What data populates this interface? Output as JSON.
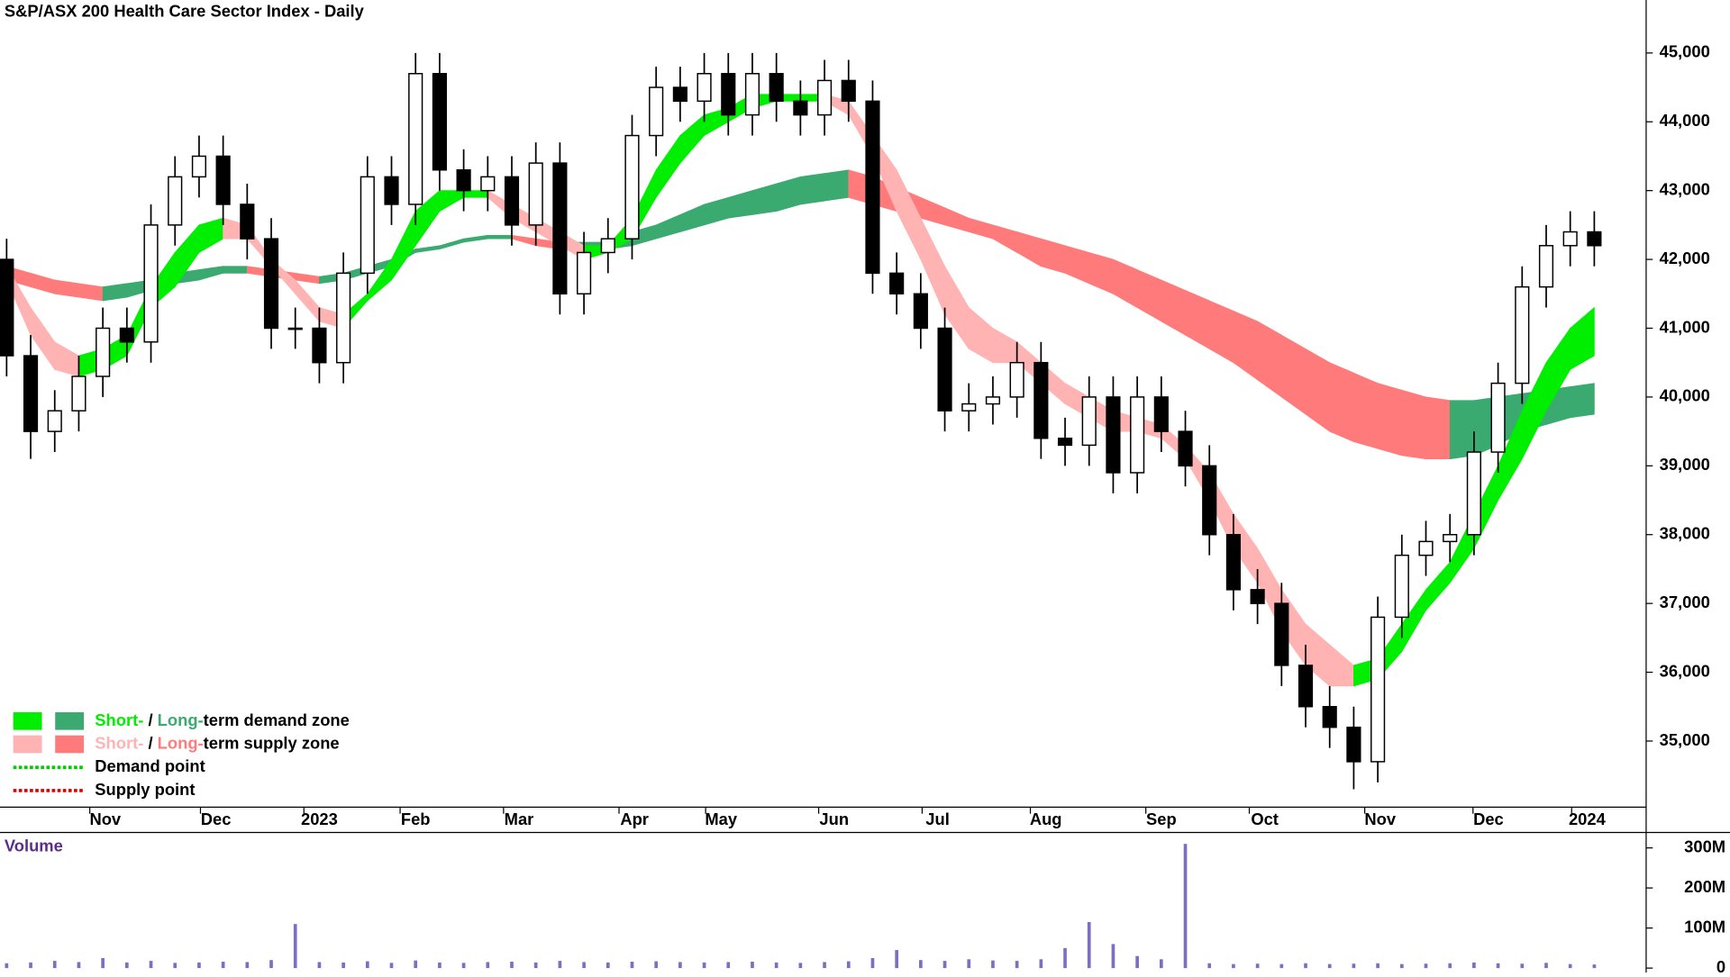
{
  "chart_data": {
    "type": "candlestick",
    "title": "S&P/ASX 200 Health Care Sector Index - Daily",
    "ylim": [
      34040,
      45770
    ],
    "yticks": [
      {
        "value": 35000,
        "label": "35,000"
      },
      {
        "value": 36000,
        "label": "36,000"
      },
      {
        "value": 37000,
        "label": "37,000"
      },
      {
        "value": 38000,
        "label": "38,000"
      },
      {
        "value": 39000,
        "label": "39,000"
      },
      {
        "value": 40000,
        "label": "40,000"
      },
      {
        "value": 41000,
        "label": "41,000"
      },
      {
        "value": 42000,
        "label": "42,000"
      },
      {
        "value": 43000,
        "label": "43,000"
      },
      {
        "value": 44000,
        "label": "44,000"
      },
      {
        "value": 45000,
        "label": "45,000"
      }
    ],
    "xlim": [
      0,
      66
    ],
    "xticks": [
      {
        "value": 4.1,
        "label": "Nov"
      },
      {
        "value": 8.7,
        "label": "Dec"
      },
      {
        "value": 13.0,
        "label": "2023"
      },
      {
        "value": 17.0,
        "label": "Feb"
      },
      {
        "value": 21.3,
        "label": "Mar"
      },
      {
        "value": 26.1,
        "label": "Apr"
      },
      {
        "value": 29.7,
        "label": "May"
      },
      {
        "value": 34.4,
        "label": "Jun"
      },
      {
        "value": 38.7,
        "label": "Jul"
      },
      {
        "value": 43.2,
        "label": "Aug"
      },
      {
        "value": 48.0,
        "label": "Sep"
      },
      {
        "value": 52.3,
        "label": "Oct"
      },
      {
        "value": 57.1,
        "label": "Nov"
      },
      {
        "value": 61.6,
        "label": "Dec"
      },
      {
        "value": 65.7,
        "label": "2024"
      }
    ],
    "open": [
      42000,
      40600,
      39500,
      39800,
      40300,
      41000,
      40800,
      42500,
      43200,
      43500,
      42800,
      42300,
      41000,
      41000,
      40500,
      41800,
      43200,
      42800,
      44700,
      43300,
      43000,
      43200,
      42500,
      43400,
      41500,
      42100,
      42300,
      43800,
      44500,
      44300,
      44700,
      44100,
      44700,
      44300,
      44100,
      44600,
      44300,
      41800,
      41500,
      41000,
      39800,
      39900,
      40000,
      40500,
      39400,
      39300,
      40000,
      38900,
      40000,
      39500,
      39000,
      38000,
      37200,
      37000,
      36100,
      35500,
      35200,
      34700,
      36800,
      37700,
      37900,
      38000,
      39200,
      40200,
      41600,
      42200,
      42400
    ],
    "high": [
      42300,
      40900,
      40100,
      40600,
      41300,
      41300,
      42800,
      43500,
      43800,
      43800,
      43100,
      42600,
      41300,
      41300,
      42100,
      43500,
      43500,
      45000,
      45000,
      43600,
      43500,
      43500,
      43700,
      43700,
      42400,
      42600,
      44100,
      44800,
      44800,
      45000,
      45000,
      45000,
      45000,
      44600,
      44900,
      44900,
      44600,
      42100,
      41800,
      41300,
      40200,
      40300,
      40800,
      40800,
      39700,
      40300,
      40300,
      40300,
      40300,
      39800,
      39300,
      38300,
      37500,
      37300,
      36400,
      35800,
      35500,
      37100,
      38000,
      38200,
      38300,
      39500,
      40500,
      41900,
      42500,
      42700,
      42700
    ],
    "low": [
      40300,
      39100,
      39200,
      39500,
      40000,
      40500,
      40500,
      42200,
      42900,
      42500,
      42000,
      40700,
      40700,
      40200,
      40200,
      41500,
      42500,
      42500,
      43000,
      42700,
      42700,
      42200,
      42200,
      41200,
      41200,
      41800,
      42000,
      43500,
      44000,
      44000,
      43800,
      43800,
      44000,
      43800,
      43800,
      44000,
      41500,
      41200,
      40700,
      39500,
      39500,
      39600,
      39700,
      39100,
      39000,
      39000,
      38600,
      38600,
      39200,
      38700,
      37700,
      36900,
      36700,
      35800,
      35200,
      34900,
      34300,
      34400,
      36500,
      37400,
      37600,
      37700,
      38900,
      39900,
      41300,
      41900,
      41900
    ],
    "close": [
      40600,
      39500,
      39800,
      40300,
      41000,
      40800,
      42500,
      43200,
      43500,
      42800,
      42300,
      41000,
      41000,
      40500,
      41800,
      43200,
      42800,
      44700,
      43300,
      43000,
      43200,
      42500,
      43400,
      41500,
      42100,
      42300,
      43800,
      44500,
      44300,
      44700,
      44100,
      44700,
      44300,
      44100,
      44600,
      44300,
      41800,
      41500,
      41000,
      39800,
      39900,
      40000,
      40500,
      39400,
      39300,
      40000,
      38900,
      40000,
      39500,
      39000,
      38000,
      37200,
      37000,
      36100,
      35500,
      35200,
      34700,
      36800,
      37700,
      37900,
      38000,
      39200,
      40200,
      41600,
      42200,
      42400,
      42200
    ],
    "short_zone": {
      "upper": [
        41900,
        41300,
        40800,
        40600,
        40700,
        40900,
        41600,
        42100,
        42500,
        42600,
        42500,
        42000,
        41700,
        41300,
        41200,
        41500,
        42000,
        42700,
        43000,
        43000,
        43000,
        42800,
        42600,
        42400,
        42200,
        42200,
        42600,
        43300,
        43800,
        44100,
        44200,
        44400,
        44400,
        44400,
        44400,
        44300,
        43800,
        43300,
        42600,
        41900,
        41300,
        41000,
        40800,
        40500,
        40200,
        40000,
        39800,
        39700,
        39600,
        39300,
        38900,
        38300,
        37800,
        37200,
        36700,
        36400,
        36100,
        36200,
        36700,
        37200,
        37600,
        38300,
        39000,
        39800,
        40500,
        41000,
        41300
      ],
      "lower": [
        41700,
        40900,
        40400,
        40300,
        40400,
        40600,
        41300,
        41600,
        42100,
        42300,
        42300,
        41900,
        41500,
        41100,
        41000,
        41400,
        41700,
        42200,
        42700,
        42900,
        42900,
        42600,
        42400,
        42200,
        42000,
        42100,
        42300,
        42900,
        43400,
        43800,
        44000,
        44200,
        44300,
        44300,
        44300,
        44100,
        43500,
        42700,
        42000,
        41200,
        40700,
        40500,
        40500,
        40200,
        39900,
        39700,
        39500,
        39500,
        39400,
        39100,
        38500,
        37800,
        37300,
        36600,
        36100,
        35800,
        35800,
        35900,
        36300,
        36900,
        37300,
        37800,
        38500,
        39100,
        39800,
        40400,
        40600
      ]
    },
    "long_zone": {
      "upper": [
        41900,
        41800,
        41700,
        41650,
        41600,
        41650,
        41700,
        41800,
        41850,
        41900,
        41900,
        41850,
        41800,
        41750,
        41800,
        41900,
        42000,
        42150,
        42200,
        42300,
        42350,
        42350,
        42300,
        42250,
        42250,
        42250,
        42400,
        42500,
        42650,
        42800,
        42900,
        43000,
        43100,
        43200,
        43250,
        43300,
        43200,
        43050,
        42900,
        42750,
        42600,
        42500,
        42400,
        42300,
        42200,
        42100,
        42000,
        41850,
        41700,
        41550,
        41400,
        41250,
        41100,
        40900,
        40700,
        40500,
        40350,
        40200,
        40100,
        40000,
        39950,
        39950,
        40000,
        40050,
        40100,
        40150,
        40200
      ],
      "lower": [
        41700,
        41600,
        41500,
        41450,
        41400,
        41450,
        41550,
        41650,
        41700,
        41800,
        41800,
        41750,
        41700,
        41650,
        41700,
        41800,
        41900,
        42100,
        42150,
        42250,
        42300,
        42300,
        42200,
        42150,
        42150,
        42150,
        42200,
        42300,
        42400,
        42500,
        42600,
        42650,
        42700,
        42800,
        42850,
        42900,
        42800,
        42700,
        42600,
        42500,
        42400,
        42300,
        42100,
        41900,
        41800,
        41650,
        41500,
        41300,
        41100,
        40900,
        40700,
        40500,
        40250,
        40000,
        39750,
        39500,
        39350,
        39250,
        39150,
        39100,
        39100,
        39150,
        39300,
        39500,
        39600,
        39700,
        39750
      ]
    },
    "legend": [
      {
        "parts": [
          "Short-",
          " / ",
          "Long-",
          "term demand zone"
        ],
        "colors": [
          "#00ee00",
          "#3aaa70"
        ]
      },
      {
        "parts": [
          "Short-",
          " / ",
          "Long-",
          "term supply zone"
        ],
        "colors": [
          "#ffb3b3",
          "#ff7b7b"
        ]
      },
      {
        "label": "Demand point",
        "color": "#00cc00"
      },
      {
        "label": "Supply point",
        "color": "#dd0000"
      }
    ],
    "volume": {
      "title": "Volume",
      "color": "#7b6fc4",
      "ylim": [
        0,
        333000000
      ],
      "yticks": [
        0,
        {
          "value": 100000000,
          "label": "100M"
        },
        {
          "value": 200000000,
          "label": "200M"
        },
        {
          "value": 300000000,
          "label": "300M"
        }
      ],
      "values": [
        12000000,
        14000000,
        18000000,
        15000000,
        25000000,
        14000000,
        18000000,
        13000000,
        14000000,
        16000000,
        15000000,
        20000000,
        110000000,
        15000000,
        14000000,
        17000000,
        13000000,
        19000000,
        14000000,
        13000000,
        15000000,
        16000000,
        14000000,
        18000000,
        15000000,
        14000000,
        16000000,
        17000000,
        15000000,
        14000000,
        15000000,
        16000000,
        14000000,
        13000000,
        15000000,
        17000000,
        25000000,
        45000000,
        20000000,
        18000000,
        22000000,
        19000000,
        18000000,
        22000000,
        50000000,
        115000000,
        60000000,
        30000000,
        22000000,
        310000000,
        12000000,
        10000000,
        11000000,
        10000000,
        12000000,
        10000000,
        11000000,
        12000000,
        10000000,
        11000000,
        12000000,
        14000000,
        12000000,
        11000000,
        13000000,
        10000000,
        9000000
      ]
    }
  }
}
